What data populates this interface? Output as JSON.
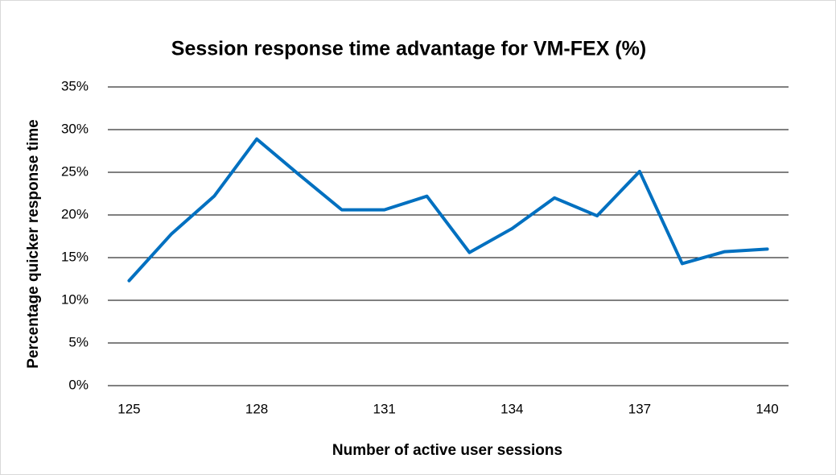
{
  "chart_data": {
    "type": "line",
    "title": "Session response time advantage for VM-FEX (%)",
    "x_label": "Number of active user sessions",
    "y_label": "Percentage quicker response time",
    "x": [
      125,
      126,
      127,
      128,
      129,
      130,
      131,
      132,
      133,
      134,
      135,
      136,
      137,
      138,
      139,
      140
    ],
    "values": [
      12.3,
      17.8,
      22.2,
      28.9,
      24.7,
      20.6,
      20.6,
      22.2,
      15.6,
      18.4,
      22.0,
      19.9,
      25.1,
      14.3,
      15.7,
      16.0
    ],
    "color": "#0070c0",
    "xlim": [
      124.5,
      140.5
    ],
    "xticks": [
      125,
      128,
      131,
      134,
      137,
      140
    ],
    "ylim": [
      0,
      35
    ],
    "yticks": [
      {
        "value": 0,
        "label": "0%"
      },
      {
        "value": 5,
        "label": "5%"
      },
      {
        "value": 10,
        "label": "10%"
      },
      {
        "value": 15,
        "label": "15%"
      },
      {
        "value": 20,
        "label": "20%"
      },
      {
        "value": 25,
        "label": "25%"
      },
      {
        "value": 30,
        "label": "30%"
      },
      {
        "value": 35,
        "label": "35%"
      }
    ],
    "grid": true
  }
}
